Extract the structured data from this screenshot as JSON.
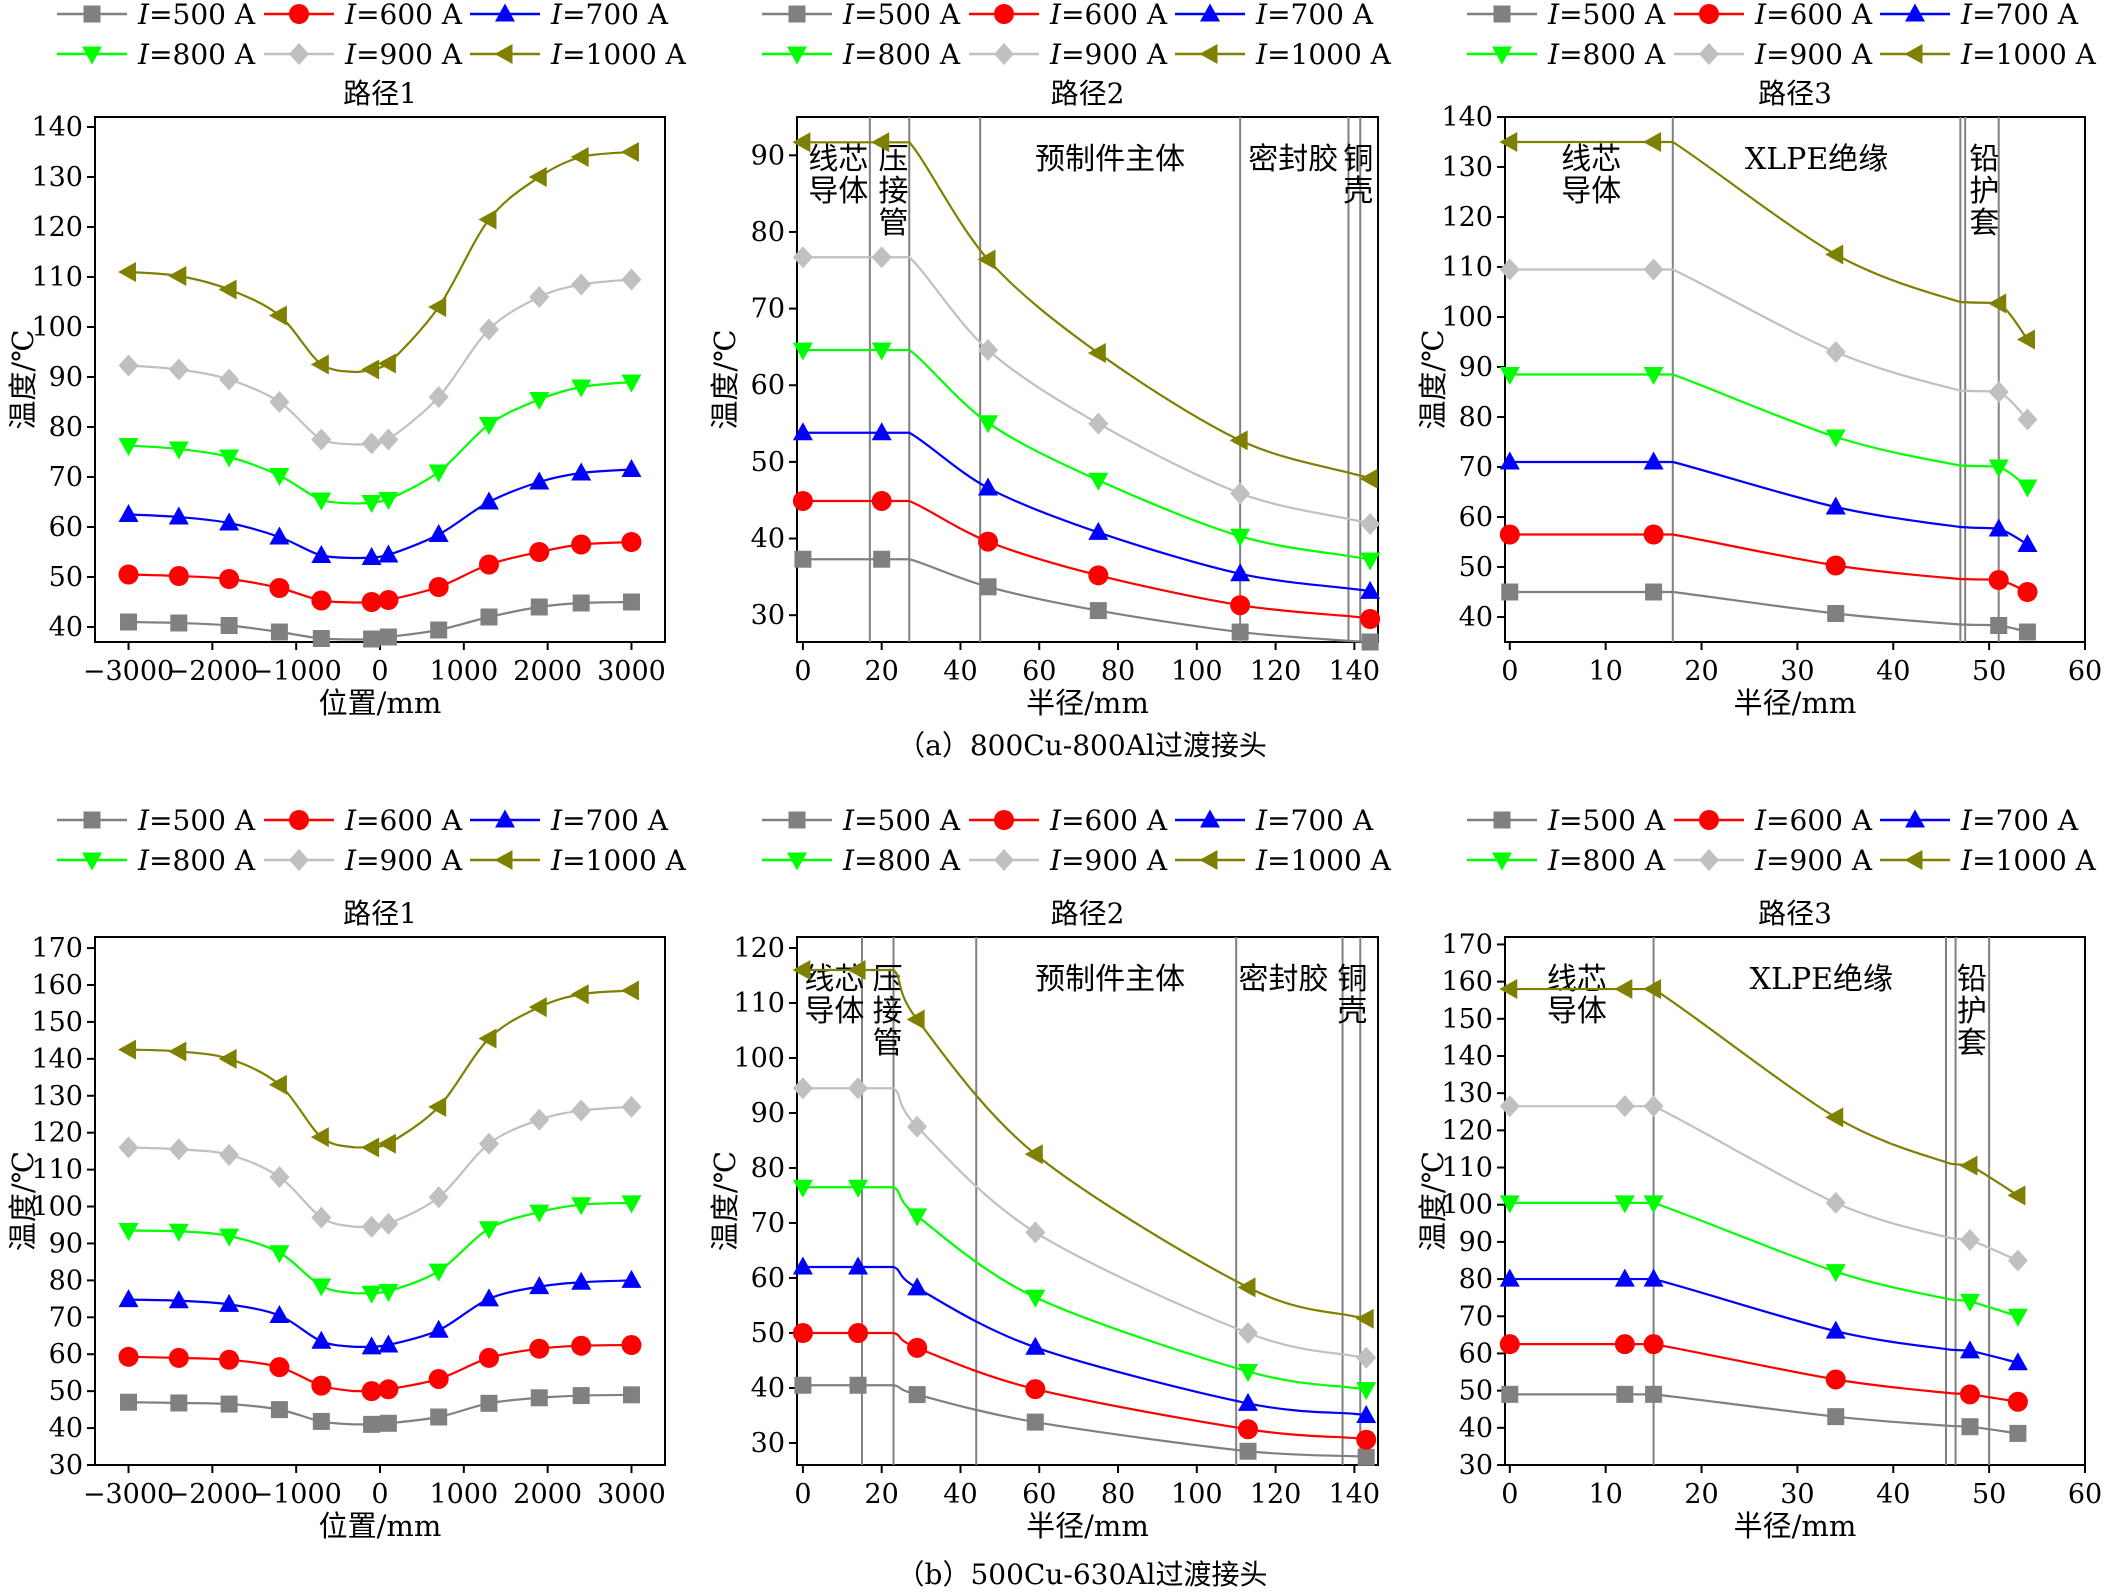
{
  "figure": {
    "caption_a": "（a）800Cu-800Al过渡接头",
    "caption_b": "（b）500Cu-630Al过渡接头"
  },
  "legend": {
    "symbol": "I",
    "labels": [
      "=500 A",
      "=600 A",
      "=700 A",
      "=800 A",
      "=900 A",
      "=1000 A"
    ]
  },
  "series_style": [
    {
      "name": "I=500 A",
      "color": "#808080",
      "marker": "square"
    },
    {
      "name": "I=600 A",
      "color": "#ff0000",
      "marker": "circle"
    },
    {
      "name": "I=700 A",
      "color": "#0000ff",
      "marker": "triangle-up"
    },
    {
      "name": "I=800 A",
      "color": "#00ff00",
      "marker": "triangle-down"
    },
    {
      "name": "I=900 A",
      "color": "#c0c0c0",
      "marker": "diamond"
    },
    {
      "name": "I=1000 A",
      "color": "#808000",
      "marker": "triangle-left"
    }
  ],
  "chart_data": [
    {
      "id": "a1",
      "type": "line",
      "title": "路径1",
      "xlabel": "位置/mm",
      "ylabel": "温度/℃",
      "xlim": [
        -3400,
        3400
      ],
      "ylim": [
        37,
        142
      ],
      "xticks": [
        -3000,
        -2000,
        -1000,
        0,
        1000,
        2000,
        3000
      ],
      "xticklabels": [
        "−3000",
        "−2000",
        "−1000",
        "0",
        "1000",
        "2000",
        "3000"
      ],
      "yticks": [
        40,
        50,
        60,
        70,
        80,
        90,
        100,
        110,
        120,
        130,
        140
      ],
      "x": [
        -3000,
        -2400,
        -1800,
        -1200,
        -700,
        -300,
        -100,
        100,
        700,
        1300,
        1900,
        2400,
        3000
      ],
      "markers_x": [
        -3000,
        -2400,
        -1800,
        -1200,
        -700,
        -100,
        100,
        700,
        1300,
        1900,
        2400,
        3000
      ],
      "series": [
        {
          "name": "I=500 A",
          "values": [
            41,
            40.8,
            40.3,
            39,
            37.7,
            37.5,
            37.6,
            38,
            39.4,
            42,
            44,
            44.8,
            45
          ]
        },
        {
          "name": "I=600 A",
          "values": [
            50.5,
            50.2,
            49.6,
            47.8,
            45.3,
            44.9,
            45.0,
            45.4,
            48,
            52.5,
            55,
            56.5,
            57
          ]
        },
        {
          "name": "I=700 A",
          "values": [
            62.5,
            62,
            60.8,
            58,
            54.3,
            53.8,
            53.9,
            54.4,
            58.5,
            65,
            69,
            70.8,
            71.5
          ]
        },
        {
          "name": "I=800 A",
          "values": [
            76.3,
            75.6,
            74,
            70.3,
            65.4,
            64.7,
            64.9,
            65.5,
            71,
            80.5,
            85.5,
            88,
            89
          ]
        },
        {
          "name": "I=900 A",
          "values": [
            92.3,
            91.5,
            89.5,
            85,
            77.5,
            76.5,
            76.7,
            77.5,
            86,
            99.5,
            106,
            108.5,
            109.5
          ]
        },
        {
          "name": "I=1000 A",
          "values": [
            111,
            110.2,
            107.5,
            102.3,
            92.5,
            91,
            91.5,
            92.7,
            104,
            121.5,
            130,
            134,
            135
          ]
        }
      ]
    },
    {
      "id": "a2",
      "type": "line",
      "title": "路径2",
      "xlabel": "半径/mm",
      "ylabel": "温度/℃",
      "xlim": [
        -1.5,
        146
      ],
      "ylim": [
        26.5,
        95
      ],
      "xticks": [
        0,
        20,
        40,
        60,
        80,
        100,
        120,
        140
      ],
      "yticks": [
        30,
        40,
        50,
        60,
        70,
        80,
        90
      ],
      "vlines": [
        17,
        27,
        45,
        111,
        138.5,
        141.5
      ],
      "regions": [
        {
          "x": 9,
          "lines": [
            "线芯",
            "导体"
          ]
        },
        {
          "x": 23,
          "lines": [
            "压",
            "接",
            "管"
          ]
        },
        {
          "x": 78,
          "lines": [
            "预制件主体"
          ]
        },
        {
          "x": 124.5,
          "lines": [
            "密封胶"
          ]
        },
        {
          "x": 141,
          "lines": [
            "铜",
            "壳"
          ]
        }
      ],
      "x": [
        0,
        20,
        27,
        47,
        75,
        111,
        140,
        144
      ],
      "markers_x": [
        0,
        20,
        47,
        75,
        111,
        142,
        144
      ],
      "series": [
        {
          "name": "I=500 A",
          "values": [
            37.3,
            37.3,
            37.3,
            33.7,
            30.6,
            27.8,
            26.6,
            26.5
          ]
        },
        {
          "name": "I=600 A",
          "values": [
            44.9,
            44.9,
            44.9,
            39.6,
            35.2,
            31.3,
            29.8,
            29.5
          ]
        },
        {
          "name": "I=700 A",
          "values": [
            53.8,
            53.8,
            53.8,
            46.6,
            40.8,
            35.4,
            33.4,
            33.1
          ]
        },
        {
          "name": "I=800 A",
          "values": [
            64.6,
            64.6,
            64.6,
            55.1,
            47.6,
            40.3,
            37.6,
            37.2
          ]
        },
        {
          "name": "I=900 A",
          "values": [
            76.7,
            76.7,
            76.7,
            64.6,
            55.0,
            45.9,
            42.4,
            41.9
          ]
        },
        {
          "name": "I=1000 A",
          "values": [
            91.7,
            91.7,
            91.7,
            76.4,
            64.2,
            52.8,
            48.4,
            47.8
          ]
        }
      ]
    },
    {
      "id": "a3",
      "type": "line",
      "title": "路径3",
      "xlabel": "半径/mm",
      "ylabel": "温度/℃",
      "xlim": [
        -0.5,
        60
      ],
      "ylim": [
        35,
        140
      ],
      "xticks": [
        0,
        10,
        20,
        30,
        40,
        50,
        60
      ],
      "yticks": [
        40,
        50,
        60,
        70,
        80,
        90,
        100,
        110,
        120,
        130,
        140
      ],
      "vlines": [
        17,
        47,
        47.5,
        51
      ],
      "regions": [
        {
          "x": 8.5,
          "lines": [
            "线芯",
            "导体"
          ]
        },
        {
          "x": 32,
          "lines": [
            "XLPE绝缘"
          ]
        },
        {
          "x": 49.5,
          "lines": [
            "铅",
            "护",
            "套"
          ]
        }
      ],
      "x": [
        0,
        15,
        17,
        34,
        47,
        51,
        54
      ],
      "markers_x": [
        0,
        15,
        34,
        51,
        54
      ],
      "series": [
        {
          "name": "I=500 A",
          "values": [
            45,
            45,
            45,
            40.7,
            38.5,
            38.3,
            37
          ]
        },
        {
          "name": "I=600 A",
          "values": [
            56.5,
            56.5,
            56.5,
            50.3,
            47.6,
            47.4,
            45
          ]
        },
        {
          "name": "I=700 A",
          "values": [
            71,
            71,
            71,
            62,
            58,
            57.6,
            54.5
          ]
        },
        {
          "name": "I=800 A",
          "values": [
            88.5,
            88.5,
            88.5,
            76,
            70.3,
            70,
            66
          ]
        },
        {
          "name": "I=900 A",
          "values": [
            109.5,
            109.5,
            109.5,
            93,
            85.3,
            85,
            79.5
          ]
        },
        {
          "name": "I=1000 A",
          "values": [
            135,
            135,
            135,
            112.5,
            103,
            102.7,
            95.5
          ]
        }
      ]
    },
    {
      "id": "b1",
      "type": "line",
      "title": "路径1",
      "xlabel": "位置/mm",
      "ylabel": "温度/℃",
      "xlim": [
        -3400,
        3400
      ],
      "ylim": [
        30,
        173
      ],
      "xticks": [
        -3000,
        -2000,
        -1000,
        0,
        1000,
        2000,
        3000
      ],
      "xticklabels": [
        "−3000",
        "−2000",
        "−1000",
        "0",
        "1000",
        "2000",
        "3000"
      ],
      "yticks": [
        30,
        40,
        50,
        60,
        70,
        80,
        90,
        100,
        110,
        120,
        130,
        140,
        150,
        160,
        170
      ],
      "x": [
        -3000,
        -2400,
        -1800,
        -1200,
        -700,
        -300,
        -100,
        100,
        700,
        1300,
        1900,
        2400,
        3000
      ],
      "markers_x": [
        -3000,
        -2400,
        -1800,
        -1200,
        -700,
        -100,
        100,
        700,
        1300,
        1900,
        2400,
        3000
      ],
      "series": [
        {
          "name": "I=500 A",
          "values": [
            47,
            46.8,
            46.5,
            45,
            41.8,
            41,
            41,
            41.3,
            43,
            46.7,
            48.2,
            48.8,
            49
          ]
        },
        {
          "name": "I=600 A",
          "values": [
            59.3,
            59,
            58.5,
            56.5,
            51.5,
            50,
            50,
            50.5,
            53.3,
            59,
            61.5,
            62.3,
            62.5
          ]
        },
        {
          "name": "I=700 A",
          "values": [
            74.8,
            74.5,
            73.5,
            70.5,
            63.5,
            62,
            62,
            62.5,
            66.5,
            75,
            78.3,
            79.5,
            80
          ]
        },
        {
          "name": "I=800 A",
          "values": [
            93.5,
            93.3,
            92,
            87.5,
            78.5,
            76.5,
            76.5,
            77,
            82.5,
            94,
            98.5,
            100.5,
            101
          ]
        },
        {
          "name": "I=900 A",
          "values": [
            116,
            115.5,
            114,
            108,
            97,
            94.5,
            94.5,
            95.3,
            102.5,
            117,
            123.5,
            126,
            127
          ]
        },
        {
          "name": "I=1000 A",
          "values": [
            142.5,
            142,
            140,
            133,
            118.8,
            116,
            116,
            117,
            127,
            145.5,
            154,
            157.5,
            158.5
          ]
        }
      ]
    },
    {
      "id": "b2",
      "type": "line",
      "title": "路径2",
      "xlabel": "半径/mm",
      "ylabel": "温度/℃",
      "xlim": [
        -1.5,
        146
      ],
      "ylim": [
        26,
        122
      ],
      "xticks": [
        0,
        20,
        40,
        60,
        80,
        100,
        120,
        140
      ],
      "yticks": [
        30,
        40,
        50,
        60,
        70,
        80,
        90,
        100,
        110,
        120
      ],
      "vlines": [
        15,
        23,
        44,
        110,
        137,
        141.5
      ],
      "regions": [
        {
          "x": 8,
          "lines": [
            "线芯",
            "导体"
          ]
        },
        {
          "x": 21.5,
          "lines": [
            "压",
            "接",
            "管"
          ]
        },
        {
          "x": 78,
          "lines": [
            "预制件主体"
          ]
        },
        {
          "x": 122,
          "lines": [
            "密封胶"
          ]
        },
        {
          "x": 139.5,
          "lines": [
            "铜",
            "壳"
          ]
        }
      ],
      "x": [
        0,
        14,
        23,
        29,
        59,
        113,
        140,
        143
      ],
      "markers_x": [
        0,
        14,
        29,
        59,
        113,
        142,
        143
      ],
      "series": [
        {
          "name": "I=500 A",
          "values": [
            40.5,
            40.5,
            40.5,
            38.8,
            33.8,
            28.5,
            27.6,
            27.4
          ]
        },
        {
          "name": "I=600 A",
          "values": [
            50,
            50,
            50,
            47.3,
            39.8,
            32.5,
            30.9,
            30.6
          ]
        },
        {
          "name": "I=700 A",
          "values": [
            62,
            62,
            62,
            58.2,
            47.4,
            37.2,
            35.3,
            35
          ]
        },
        {
          "name": "I=800 A",
          "values": [
            76.5,
            76.5,
            76.5,
            71.3,
            56.5,
            43,
            40,
            39.7
          ]
        },
        {
          "name": "I=900 A",
          "values": [
            94.5,
            94.5,
            94.5,
            87.5,
            68.3,
            50,
            45.8,
            45.5
          ]
        },
        {
          "name": "I=1000 A",
          "values": [
            116,
            116,
            116,
            107,
            82.5,
            58.3,
            53,
            52.6
          ]
        }
      ]
    },
    {
      "id": "b3",
      "type": "line",
      "title": "路径3",
      "xlabel": "半径/mm",
      "ylabel": "温度/℃",
      "xlim": [
        -0.5,
        60
      ],
      "ylim": [
        30,
        172
      ],
      "xticks": [
        0,
        10,
        20,
        30,
        40,
        50,
        60
      ],
      "yticks": [
        30,
        40,
        50,
        60,
        70,
        80,
        90,
        100,
        110,
        120,
        130,
        140,
        150,
        160,
        170
      ],
      "vlines": [
        15,
        45.5,
        46.5,
        50
      ],
      "regions": [
        {
          "x": 7,
          "lines": [
            "线芯",
            "导体"
          ]
        },
        {
          "x": 32.5,
          "lines": [
            "XLPE绝缘"
          ]
        },
        {
          "x": 48.2,
          "lines": [
            "铅",
            "护",
            "套"
          ]
        }
      ],
      "x": [
        0,
        12,
        15,
        34,
        46,
        48,
        53
      ],
      "markers_x": [
        0,
        12,
        15,
        34,
        48,
        53
      ],
      "series": [
        {
          "name": "I=500 A",
          "values": [
            49,
            49,
            49,
            43,
            40.5,
            40.3,
            38.5
          ]
        },
        {
          "name": "I=600 A",
          "values": [
            62.5,
            62.5,
            62.5,
            53,
            49.3,
            49,
            47
          ]
        },
        {
          "name": "I=700 A",
          "values": [
            80,
            80,
            80,
            66,
            61,
            60.7,
            57.5
          ]
        },
        {
          "name": "I=800 A",
          "values": [
            100.5,
            100.5,
            100.5,
            82,
            74.5,
            74,
            70
          ]
        },
        {
          "name": "I=900 A",
          "values": [
            126.5,
            126.5,
            126.5,
            100.5,
            91,
            90.5,
            85
          ]
        },
        {
          "name": "I=1000 A",
          "values": [
            158,
            158,
            158,
            123.5,
            111,
            110.5,
            102.5
          ]
        }
      ]
    }
  ]
}
